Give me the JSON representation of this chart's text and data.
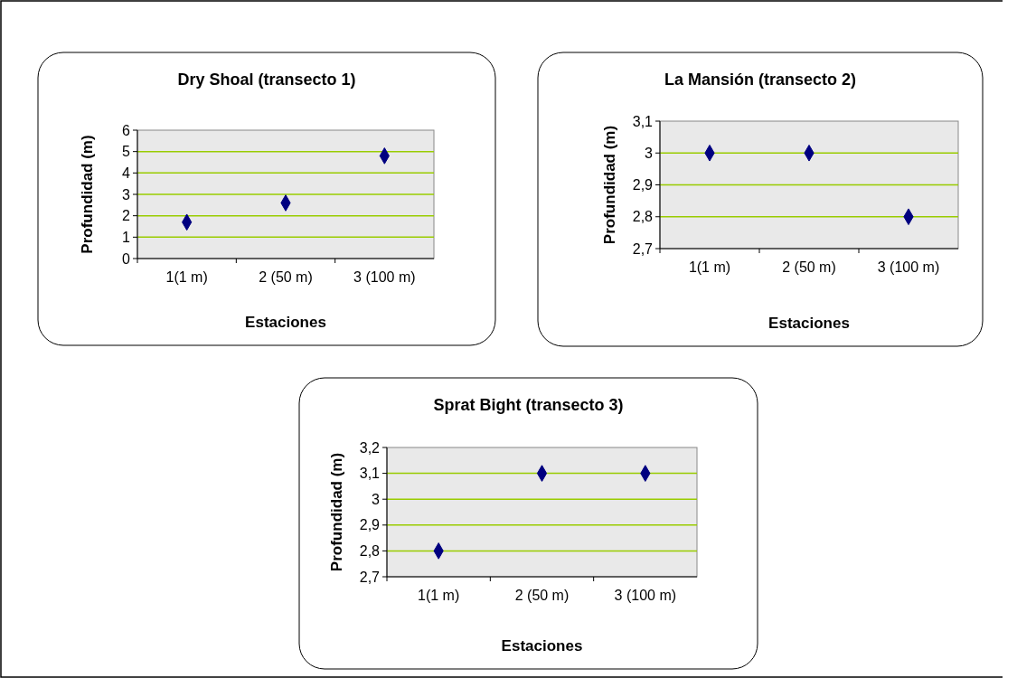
{
  "chart_data": [
    {
      "type": "scatter",
      "title": "Dry Shoal (transecto 1)",
      "xlabel": "Estaciones",
      "ylabel": "Profundidad (m)",
      "categories": [
        "1(1 m)",
        "2 (50 m)",
        "3 (100 m)"
      ],
      "series": [
        {
          "color": "#000080",
          "values": [
            1.7,
            2.6,
            4.8
          ]
        }
      ],
      "marker": "diamond",
      "ylim": [
        0,
        6
      ],
      "yticks": [
        0,
        1,
        2,
        3,
        4,
        5,
        6
      ],
      "grid": "y"
    },
    {
      "type": "scatter",
      "title": "La Mansión (transecto 2)",
      "xlabel": "Estaciones",
      "ylabel": "Profundidad (m)",
      "categories": [
        "1(1 m)",
        "2 (50 m)",
        "3 (100 m)"
      ],
      "series": [
        {
          "color": "#000080",
          "values": [
            3,
            3,
            2.8
          ]
        }
      ],
      "marker": "diamond",
      "ylim": [
        2.7,
        3.1
      ],
      "yticks": [
        {
          "value": 2.7,
          "label": "2,7"
        },
        {
          "value": 2.8,
          "label": "2,8"
        },
        {
          "value": 2.9,
          "label": "2,9"
        },
        3,
        {
          "value": 3.1,
          "label": "3,1"
        }
      ],
      "grid": "y"
    },
    {
      "type": "scatter",
      "title": "Sprat Bight (transecto 3)",
      "xlabel": "Estaciones",
      "ylabel": "Profundidad (m)",
      "categories": [
        "1(1 m)",
        "2 (50 m)",
        "3 (100 m)"
      ],
      "series": [
        {
          "color": "#000080",
          "values": [
            2.8,
            3.1,
            3.1
          ]
        }
      ],
      "marker": "diamond",
      "ylim": [
        2.7,
        3.2
      ],
      "yticks": [
        {
          "value": 2.7,
          "label": "2,7"
        },
        {
          "value": 2.8,
          "label": "2,8"
        },
        {
          "value": 2.9,
          "label": "2,9"
        },
        3,
        {
          "value": 3.1,
          "label": "3,1"
        },
        {
          "value": 3.2,
          "label": "3,2"
        }
      ],
      "grid": "y"
    }
  ]
}
